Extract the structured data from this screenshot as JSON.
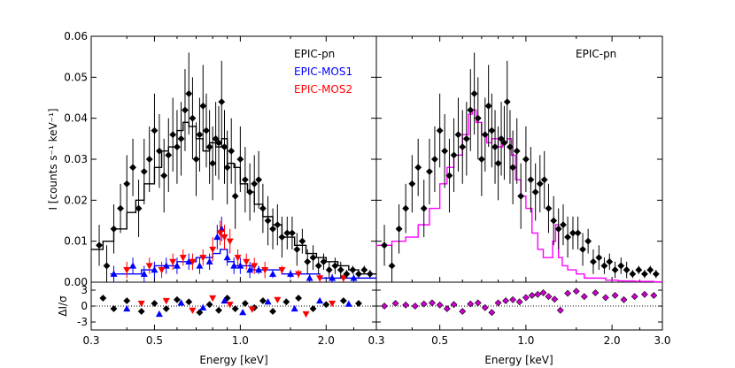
{
  "chart_data": {
    "type": "scatter",
    "ylabel_main": "I [counts s⁻¹ keV⁻¹]",
    "ylabel_resid": "ΔI/σ",
    "xlabel": "Energy [keV]",
    "x_scale": "log",
    "xlim": [
      0.3,
      3.0
    ],
    "ylim_main": [
      0.0,
      0.06
    ],
    "ylim_resid": [
      -4.5,
      4.5
    ],
    "yticks_main": [
      "0.00",
      "0.01",
      "0.02",
      "0.03",
      "0.04",
      "0.05",
      "0.06"
    ],
    "yticks_resid": [
      "3",
      "0",
      "-3"
    ],
    "xticks_left": [
      "0.3",
      "0.5",
      "1.0",
      "2.0"
    ],
    "xticks_right": [
      "0.3",
      "0.5",
      "1.0",
      "2.0",
      "3.0"
    ],
    "colors": {
      "pn": "#000000",
      "mos1": "#0000ff",
      "mos2": "#ff0000",
      "model_right": "#ff00ff",
      "resid_right": "#cc00cc"
    },
    "panels": [
      {
        "name": "left",
        "legend": [
          {
            "label": "EPIC-pn",
            "color": "#000000"
          },
          {
            "label": "EPIC-MOS1",
            "color": "#0000ff"
          },
          {
            "label": "EPIC-MOS2",
            "color": "#ff0000"
          }
        ],
        "series": [
          {
            "name": "EPIC-pn",
            "x": [
              0.32,
              0.34,
              0.36,
              0.38,
              0.4,
              0.42,
              0.44,
              0.46,
              0.48,
              0.5,
              0.52,
              0.54,
              0.56,
              0.58,
              0.6,
              0.62,
              0.64,
              0.66,
              0.68,
              0.7,
              0.72,
              0.74,
              0.76,
              0.78,
              0.8,
              0.82,
              0.84,
              0.86,
              0.88,
              0.9,
              0.93,
              0.96,
              1.0,
              1.04,
              1.08,
              1.12,
              1.16,
              1.2,
              1.25,
              1.3,
              1.35,
              1.4,
              1.46,
              1.52,
              1.58,
              1.65,
              1.72,
              1.8,
              1.88,
              1.96,
              2.05,
              2.15,
              2.25,
              2.36,
              2.48,
              2.6,
              2.72,
              2.85
            ],
            "y": [
              0.009,
              0.004,
              0.013,
              0.018,
              0.024,
              0.028,
              0.018,
              0.027,
              0.03,
              0.037,
              0.032,
              0.026,
              0.031,
              0.036,
              0.033,
              0.035,
              0.042,
              0.046,
              0.04,
              0.03,
              0.036,
              0.043,
              0.037,
              0.033,
              0.029,
              0.035,
              0.034,
              0.044,
              0.033,
              0.028,
              0.032,
              0.021,
              0.03,
              0.025,
              0.022,
              0.024,
              0.025,
              0.018,
              0.015,
              0.013,
              0.014,
              0.011,
              0.012,
              0.012,
              0.008,
              0.01,
              0.005,
              0.006,
              0.004,
              0.005,
              0.003,
              0.004,
              0.003,
              0.002,
              0.003,
              0.002,
              0.003,
              0.002
            ],
            "err": [
              0.005,
              0.005,
              0.006,
              0.006,
              0.007,
              0.007,
              0.007,
              0.008,
              0.008,
              0.009,
              0.009,
              0.009,
              0.009,
              0.009,
              0.009,
              0.009,
              0.01,
              0.01,
              0.01,
              0.009,
              0.009,
              0.01,
              0.009,
              0.009,
              0.009,
              0.009,
              0.009,
              0.01,
              0.009,
              0.009,
              0.008,
              0.008,
              0.008,
              0.008,
              0.007,
              0.007,
              0.007,
              0.006,
              0.006,
              0.005,
              0.005,
              0.005,
              0.004,
              0.004,
              0.004,
              0.003,
              0.003,
              0.003,
              0.002,
              0.002,
              0.002,
              0.002,
              0.002,
              0.001,
              0.001,
              0.001,
              0.001,
              0.001
            ]
          },
          {
            "name": "EPIC-MOS1",
            "x": [
              0.36,
              0.42,
              0.46,
              0.5,
              0.55,
              0.6,
              0.66,
              0.72,
              0.78,
              0.83,
              0.86,
              0.9,
              0.95,
              1.0,
              1.08,
              1.16,
              1.3,
              1.5,
              1.75,
              2.1,
              2.5
            ],
            "y": [
              0.002,
              0.004,
              0.002,
              0.003,
              0.004,
              0.004,
              0.005,
              0.004,
              0.005,
              0.011,
              0.013,
              0.006,
              0.004,
              0.004,
              0.003,
              0.003,
              0.002,
              0.002,
              0.001,
              0.001,
              0.001
            ],
            "err": [
              0.002,
              0.002,
              0.002,
              0.002,
              0.002,
              0.002,
              0.002,
              0.002,
              0.002,
              0.003,
              0.003,
              0.002,
              0.002,
              0.002,
              0.002,
              0.001,
              0.001,
              0.001,
              0.001,
              0.001,
              0.001
            ]
          },
          {
            "name": "EPIC-MOS2",
            "x": [
              0.4,
              0.48,
              0.53,
              0.58,
              0.63,
              0.68,
              0.74,
              0.8,
              0.85,
              0.88,
              0.92,
              0.98,
              1.05,
              1.12,
              1.22,
              1.4,
              1.6,
              1.9,
              2.3
            ],
            "y": [
              0.003,
              0.004,
              0.003,
              0.005,
              0.006,
              0.005,
              0.006,
              0.008,
              0.012,
              0.011,
              0.01,
              0.006,
              0.005,
              0.004,
              0.003,
              0.003,
              0.002,
              0.001,
              0.001
            ],
            "err": [
              0.002,
              0.002,
              0.002,
              0.002,
              0.002,
              0.002,
              0.002,
              0.003,
              0.003,
              0.003,
              0.003,
              0.002,
              0.002,
              0.002,
              0.002,
              0.001,
              0.001,
              0.001,
              0.001
            ]
          },
          {
            "name": "pn-model",
            "x": [
              0.3,
              0.33,
              0.36,
              0.4,
              0.43,
              0.46,
              0.5,
              0.53,
              0.56,
              0.6,
              0.63,
              0.66,
              0.7,
              0.74,
              0.78,
              0.82,
              0.86,
              0.9,
              0.95,
              1.0,
              1.06,
              1.12,
              1.2,
              1.3,
              1.4,
              1.55,
              1.7,
              1.85,
              2.0,
              2.2,
              2.4,
              2.6,
              2.8
            ],
            "y": [
              0.008,
              0.01,
              0.013,
              0.017,
              0.02,
              0.024,
              0.028,
              0.032,
              0.033,
              0.037,
              0.039,
              0.038,
              0.035,
              0.032,
              0.034,
              0.033,
              0.035,
              0.029,
              0.028,
              0.024,
              0.022,
              0.019,
              0.016,
              0.014,
              0.011,
              0.009,
              0.007,
              0.006,
              0.005,
              0.004,
              0.003,
              0.002,
              0.002
            ]
          },
          {
            "name": "mos-model",
            "x": [
              0.35,
              0.4,
              0.45,
              0.5,
              0.55,
              0.6,
              0.65,
              0.7,
              0.75,
              0.8,
              0.85,
              0.9,
              0.95,
              1.0,
              1.1,
              1.2,
              1.4,
              1.6,
              1.9,
              2.3,
              2.8
            ],
            "y": [
              0.002,
              0.002,
              0.003,
              0.004,
              0.004,
              0.005,
              0.005,
              0.006,
              0.006,
              0.007,
              0.008,
              0.005,
              0.004,
              0.004,
              0.003,
              0.003,
              0.002,
              0.002,
              0.001,
              0.001,
              0.001
            ]
          }
        ],
        "residuals": [
          {
            "name": "EPIC-pn",
            "x": [
              0.33,
              0.36,
              0.4,
              0.45,
              0.5,
              0.55,
              0.6,
              0.66,
              0.72,
              0.78,
              0.84,
              0.9,
              0.96,
              1.04,
              1.12,
              1.2,
              1.3,
              1.45,
              1.6,
              1.8,
              2.0,
              2.3,
              2.6
            ],
            "y": [
              1.5,
              -0.5,
              1.0,
              -1.0,
              0.5,
              -0.5,
              1.2,
              0.8,
              -1.2,
              0.3,
              -0.8,
              1.5,
              -0.5,
              0.5,
              -0.3,
              1.0,
              -1.0,
              0.8,
              1.5,
              -0.5,
              0.3,
              1.0,
              0.5
            ]
          },
          {
            "name": "EPIC-MOS1",
            "x": [
              0.4,
              0.52,
              0.62,
              0.74,
              0.88,
              1.02,
              1.25,
              1.55,
              1.9,
              2.4
            ],
            "y": [
              -0.5,
              -1.5,
              0.6,
              -0.3,
              1.0,
              -1.2,
              0.8,
              -0.5,
              1.0,
              0.4
            ]
          },
          {
            "name": "EPIC-MOS2",
            "x": [
              0.45,
              0.55,
              0.68,
              0.8,
              0.92,
              1.1,
              1.35,
              1.7,
              2.1
            ],
            "y": [
              0.5,
              1.0,
              -0.8,
              1.5,
              0.3,
              -0.6,
              1.2,
              -1.5,
              0.5
            ]
          }
        ]
      },
      {
        "name": "right",
        "legend": [
          {
            "label": "EPIC-pn",
            "color": "#000000"
          }
        ],
        "series": [
          {
            "name": "EPIC-pn",
            "x": [
              0.32,
              0.34,
              0.36,
              0.38,
              0.4,
              0.42,
              0.44,
              0.46,
              0.48,
              0.5,
              0.52,
              0.54,
              0.56,
              0.58,
              0.6,
              0.62,
              0.64,
              0.66,
              0.68,
              0.7,
              0.72,
              0.74,
              0.76,
              0.78,
              0.8,
              0.82,
              0.84,
              0.86,
              0.88,
              0.9,
              0.93,
              0.96,
              1.0,
              1.04,
              1.08,
              1.12,
              1.16,
              1.2,
              1.25,
              1.3,
              1.35,
              1.4,
              1.46,
              1.52,
              1.58,
              1.65,
              1.72,
              1.8,
              1.88,
              1.96,
              2.05,
              2.15,
              2.25,
              2.36,
              2.48,
              2.6,
              2.72,
              2.85
            ],
            "y": [
              0.009,
              0.004,
              0.013,
              0.018,
              0.024,
              0.028,
              0.018,
              0.027,
              0.03,
              0.037,
              0.032,
              0.026,
              0.031,
              0.036,
              0.033,
              0.035,
              0.042,
              0.046,
              0.04,
              0.03,
              0.036,
              0.043,
              0.037,
              0.033,
              0.029,
              0.035,
              0.034,
              0.044,
              0.033,
              0.028,
              0.032,
              0.021,
              0.03,
              0.025,
              0.022,
              0.024,
              0.025,
              0.018,
              0.015,
              0.013,
              0.014,
              0.011,
              0.012,
              0.012,
              0.008,
              0.01,
              0.005,
              0.006,
              0.004,
              0.005,
              0.003,
              0.004,
              0.003,
              0.002,
              0.003,
              0.002,
              0.003,
              0.002
            ],
            "err": [
              0.005,
              0.005,
              0.006,
              0.006,
              0.007,
              0.007,
              0.007,
              0.008,
              0.008,
              0.009,
              0.009,
              0.009,
              0.009,
              0.009,
              0.009,
              0.009,
              0.01,
              0.01,
              0.01,
              0.009,
              0.009,
              0.01,
              0.009,
              0.009,
              0.009,
              0.009,
              0.009,
              0.01,
              0.009,
              0.009,
              0.008,
              0.008,
              0.008,
              0.008,
              0.007,
              0.007,
              0.007,
              0.006,
              0.006,
              0.005,
              0.005,
              0.005,
              0.004,
              0.004,
              0.004,
              0.003,
              0.003,
              0.003,
              0.002,
              0.002,
              0.002,
              0.002,
              0.002,
              0.001,
              0.001,
              0.001,
              0.001,
              0.001
            ]
          },
          {
            "name": "model",
            "x": [
              0.3,
              0.34,
              0.38,
              0.42,
              0.46,
              0.5,
              0.53,
              0.56,
              0.6,
              0.63,
              0.65,
              0.67,
              0.7,
              0.73,
              0.76,
              0.8,
              0.83,
              0.86,
              0.89,
              0.92,
              0.96,
              1.0,
              1.05,
              1.1,
              1.15,
              1.2,
              1.24,
              1.27,
              1.3,
              1.34,
              1.4,
              1.5,
              1.6,
              1.75,
              1.9,
              2.1,
              2.4,
              2.8
            ],
            "y": [
              0.009,
              0.01,
              0.011,
              0.014,
              0.018,
              0.024,
              0.028,
              0.031,
              0.036,
              0.041,
              0.042,
              0.039,
              0.036,
              0.034,
              0.035,
              0.033,
              0.034,
              0.035,
              0.031,
              0.025,
              0.021,
              0.018,
              0.012,
              0.008,
              0.006,
              0.006,
              0.01,
              0.014,
              0.006,
              0.004,
              0.003,
              0.002,
              0.001,
              0.001,
              0.0005,
              0.0003,
              0.0002,
              0.0001
            ]
          }
        ],
        "residuals": [
          {
            "name": "EPIC-pn",
            "x": [
              0.32,
              0.35,
              0.38,
              0.41,
              0.44,
              0.47,
              0.5,
              0.53,
              0.56,
              0.6,
              0.64,
              0.68,
              0.72,
              0.76,
              0.8,
              0.85,
              0.9,
              0.95,
              1.0,
              1.05,
              1.1,
              1.15,
              1.2,
              1.26,
              1.32,
              1.4,
              1.5,
              1.6,
              1.75,
              1.9,
              2.05,
              2.2,
              2.4,
              2.6,
              2.8
            ],
            "y": [
              0.0,
              0.5,
              0.2,
              0.0,
              0.4,
              0.6,
              0.2,
              -0.5,
              0.3,
              -1.0,
              0.4,
              0.6,
              -0.3,
              -1.2,
              0.6,
              1.0,
              1.2,
              0.8,
              1.6,
              2.0,
              2.2,
              2.5,
              1.8,
              1.3,
              -0.8,
              2.4,
              2.8,
              1.8,
              2.5,
              1.6,
              2.0,
              1.2,
              1.8,
              2.2,
              2.0
            ]
          }
        ]
      }
    ]
  }
}
